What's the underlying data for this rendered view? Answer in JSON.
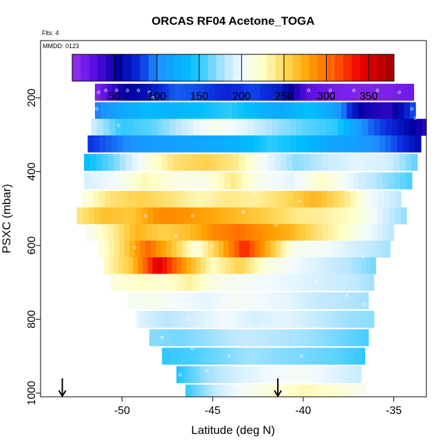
{
  "chart_data": {
    "type": "heatmap",
    "title": "ORCAS RF04 Acetone_TOGA",
    "flights_note": "Flts: 4",
    "date_note": "MMDD: 0123",
    "xlabel": "Latitude (deg N)",
    "ylabel": "PSXC (mbar)",
    "xlim": [
      -54.5,
      -33.2
    ],
    "ylim": [
      1010,
      45
    ],
    "x_ticks": [
      -50,
      -45,
      -40,
      -35
    ],
    "x_tick_labels": [
      "-50",
      "-45",
      "-40",
      "-35"
    ],
    "y_ticks": [
      200,
      400,
      600,
      800,
      1000
    ],
    "y_tick_labels": [
      "200",
      "400",
      "600",
      "800",
      "1000"
    ],
    "colorbar": {
      "min": 0,
      "max": 380,
      "ticks": [
        50,
        100,
        150,
        200,
        250,
        300,
        350
      ],
      "tick_labels": [
        "50",
        "100",
        "150",
        "200",
        "250",
        "300",
        "350"
      ],
      "stops": [
        {
          "v": 0,
          "color": "#9A32F0"
        },
        {
          "v": 25,
          "color": "#5A0FE6"
        },
        {
          "v": 55,
          "color": "#0000A0"
        },
        {
          "v": 80,
          "color": "#0A2EE0"
        },
        {
          "v": 100,
          "color": "#1E90FF"
        },
        {
          "v": 140,
          "color": "#00BFFF"
        },
        {
          "v": 180,
          "color": "#B8E6FF"
        },
        {
          "v": 200,
          "color": "#F2FAFF"
        },
        {
          "v": 225,
          "color": "#FFFFC8"
        },
        {
          "v": 255,
          "color": "#FFD24A"
        },
        {
          "v": 280,
          "color": "#FFA000"
        },
        {
          "v": 310,
          "color": "#FF5A00"
        },
        {
          "v": 340,
          "color": "#EE0000"
        },
        {
          "v": 380,
          "color": "#A00000"
        }
      ]
    },
    "bands": [
      {
        "p": 185,
        "lat": [
          -51.5,
          -33.9
        ],
        "vals": [
          8,
          50,
          65,
          90,
          85,
          75,
          85,
          70,
          25,
          15,
          10,
          12,
          18
        ]
      },
      {
        "p": 235,
        "lat": [
          -51.5,
          -33.8
        ],
        "vals": [
          95,
          120,
          135,
          130,
          140,
          150,
          135,
          120,
          140,
          115,
          50,
          40,
          90
        ]
      },
      {
        "p": 280,
        "lat": [
          -51.7,
          -33.1
        ],
        "vals": [
          190,
          150,
          160,
          185,
          210,
          195,
          175,
          160,
          150,
          95,
          70,
          40
        ]
      },
      {
        "p": 325,
        "lat": [
          -51.9,
          -33.5
        ],
        "vals": [
          80,
          95,
          110,
          115,
          120,
          130,
          150,
          140,
          120,
          110,
          90,
          60
        ]
      },
      {
        "p": 375,
        "lat": [
          -52.1,
          -33.7
        ],
        "vals": [
          135,
          165,
          210,
          245,
          255,
          240,
          200,
          170,
          185,
          195,
          190,
          160
        ]
      },
      {
        "p": 425,
        "lat": [
          -52.1,
          -34.0
        ],
        "vals": [
          190,
          200,
          230,
          215,
          210,
          240,
          205,
          195,
          225,
          195,
          175,
          155
        ]
      },
      {
        "p": 475,
        "lat": [
          -52.2,
          -34.6
        ],
        "vals": [
          215,
          245,
          255,
          245,
          230,
          240,
          235,
          250,
          270,
          245,
          200,
          180
        ]
      },
      {
        "p": 520,
        "lat": [
          -52.5,
          -34.3
        ],
        "vals": [
          240,
          265,
          260,
          290,
          285,
          275,
          265,
          255,
          240,
          235,
          225,
          195,
          170
        ]
      },
      {
        "p": 565,
        "lat": [
          -52.0,
          -35.0
        ],
        "vals": [
          205,
          235,
          270,
          255,
          265,
          290,
          300,
          285,
          270,
          245,
          225,
          200,
          180
        ]
      },
      {
        "p": 610,
        "lat": [
          -51.3,
          -35.2
        ],
        "vals": [
          215,
          250,
          305,
          265,
          215,
          265,
          330,
          270,
          210,
          205,
          195,
          185,
          175
        ]
      },
      {
        "p": 655,
        "lat": [
          -51.0,
          -36.0
        ],
        "vals": [
          225,
          260,
          350,
          280,
          225,
          255,
          215,
          200,
          190,
          180,
          165
        ]
      },
      {
        "p": 700,
        "lat": [
          -50.6,
          -36.1
        ],
        "vals": [
          215,
          225,
          220,
          235,
          210,
          205,
          200,
          195,
          190,
          185,
          175
        ]
      },
      {
        "p": 750,
        "lat": [
          -49.7,
          -36.4
        ],
        "vals": [
          205,
          210,
          200,
          195,
          205,
          200,
          195,
          185,
          180,
          175
        ]
      },
      {
        "p": 800,
        "lat": [
          -49.2,
          -36.1
        ],
        "vals": [
          195,
          180,
          190,
          200,
          190,
          195,
          185,
          175,
          170
        ]
      },
      {
        "p": 850,
        "lat": [
          -48.5,
          -36.4
        ],
        "vals": [
          170,
          165,
          175,
          185,
          180,
          175,
          165,
          155
        ]
      },
      {
        "p": 900,
        "lat": [
          -47.8,
          -36.6
        ],
        "vals": [
          150,
          155,
          165,
          175,
          170,
          165,
          160,
          150
        ]
      },
      {
        "p": 950,
        "lat": [
          -47.0,
          -36.8
        ],
        "vals": [
          145,
          175,
          190,
          200,
          205,
          195,
          185
        ]
      },
      {
        "p": 1000,
        "lat": [
          -46.5,
          -36.5
        ],
        "vals": [
          150,
          185,
          205,
          220,
          230,
          220,
          205
        ]
      }
    ],
    "markers": [
      {
        "lat": -51.3,
        "p": 185
      },
      {
        "lat": -50.9,
        "p": 180
      },
      {
        "lat": -50.3,
        "p": 180
      },
      {
        "lat": -49.7,
        "p": 180
      },
      {
        "lat": -49.1,
        "p": 180
      },
      {
        "lat": -48.5,
        "p": 185
      },
      {
        "lat": -48.3,
        "p": 200
      },
      {
        "lat": -51.4,
        "p": 230
      },
      {
        "lat": -39.7,
        "p": 180
      },
      {
        "lat": -38.5,
        "p": 180
      },
      {
        "lat": -37.2,
        "p": 180
      },
      {
        "lat": -35.9,
        "p": 180
      },
      {
        "lat": -34.7,
        "p": 185
      },
      {
        "lat": -34.0,
        "p": 230
      },
      {
        "lat": -33.8,
        "p": 255
      },
      {
        "lat": -50.2,
        "p": 275
      },
      {
        "lat": -45.2,
        "p": 470
      },
      {
        "lat": -44.1,
        "p": 435
      },
      {
        "lat": -42.7,
        "p": 460
      },
      {
        "lat": -40.2,
        "p": 480
      },
      {
        "lat": -48.7,
        "p": 520
      },
      {
        "lat": -46.1,
        "p": 520
      },
      {
        "lat": -43.3,
        "p": 510
      },
      {
        "lat": -41.5,
        "p": 545
      },
      {
        "lat": -49.3,
        "p": 605
      },
      {
        "lat": -47.0,
        "p": 575
      },
      {
        "lat": -45.0,
        "p": 600
      },
      {
        "lat": -41.3,
        "p": 655
      },
      {
        "lat": -38.0,
        "p": 600
      },
      {
        "lat": -36.7,
        "p": 630
      },
      {
        "lat": -35.7,
        "p": 650
      },
      {
        "lat": -47.6,
        "p": 700
      },
      {
        "lat": -44.5,
        "p": 720
      },
      {
        "lat": -39.3,
        "p": 695
      },
      {
        "lat": -37.6,
        "p": 735
      },
      {
        "lat": -36.6,
        "p": 760
      },
      {
        "lat": -46.3,
        "p": 800
      },
      {
        "lat": -42.3,
        "p": 815
      },
      {
        "lat": -47.8,
        "p": 850
      },
      {
        "lat": -46.1,
        "p": 880
      },
      {
        "lat": -44.1,
        "p": 900
      },
      {
        "lat": -40.1,
        "p": 900
      },
      {
        "lat": -46.8,
        "p": 950
      },
      {
        "lat": -45.3,
        "p": 940
      },
      {
        "lat": -41.0,
        "p": 1000
      }
    ],
    "arrows": [
      {
        "lat": -53.3,
        "p_from": 960,
        "p_to": 1008
      },
      {
        "lat": -41.4,
        "p_from": 960,
        "p_to": 1008
      }
    ]
  }
}
